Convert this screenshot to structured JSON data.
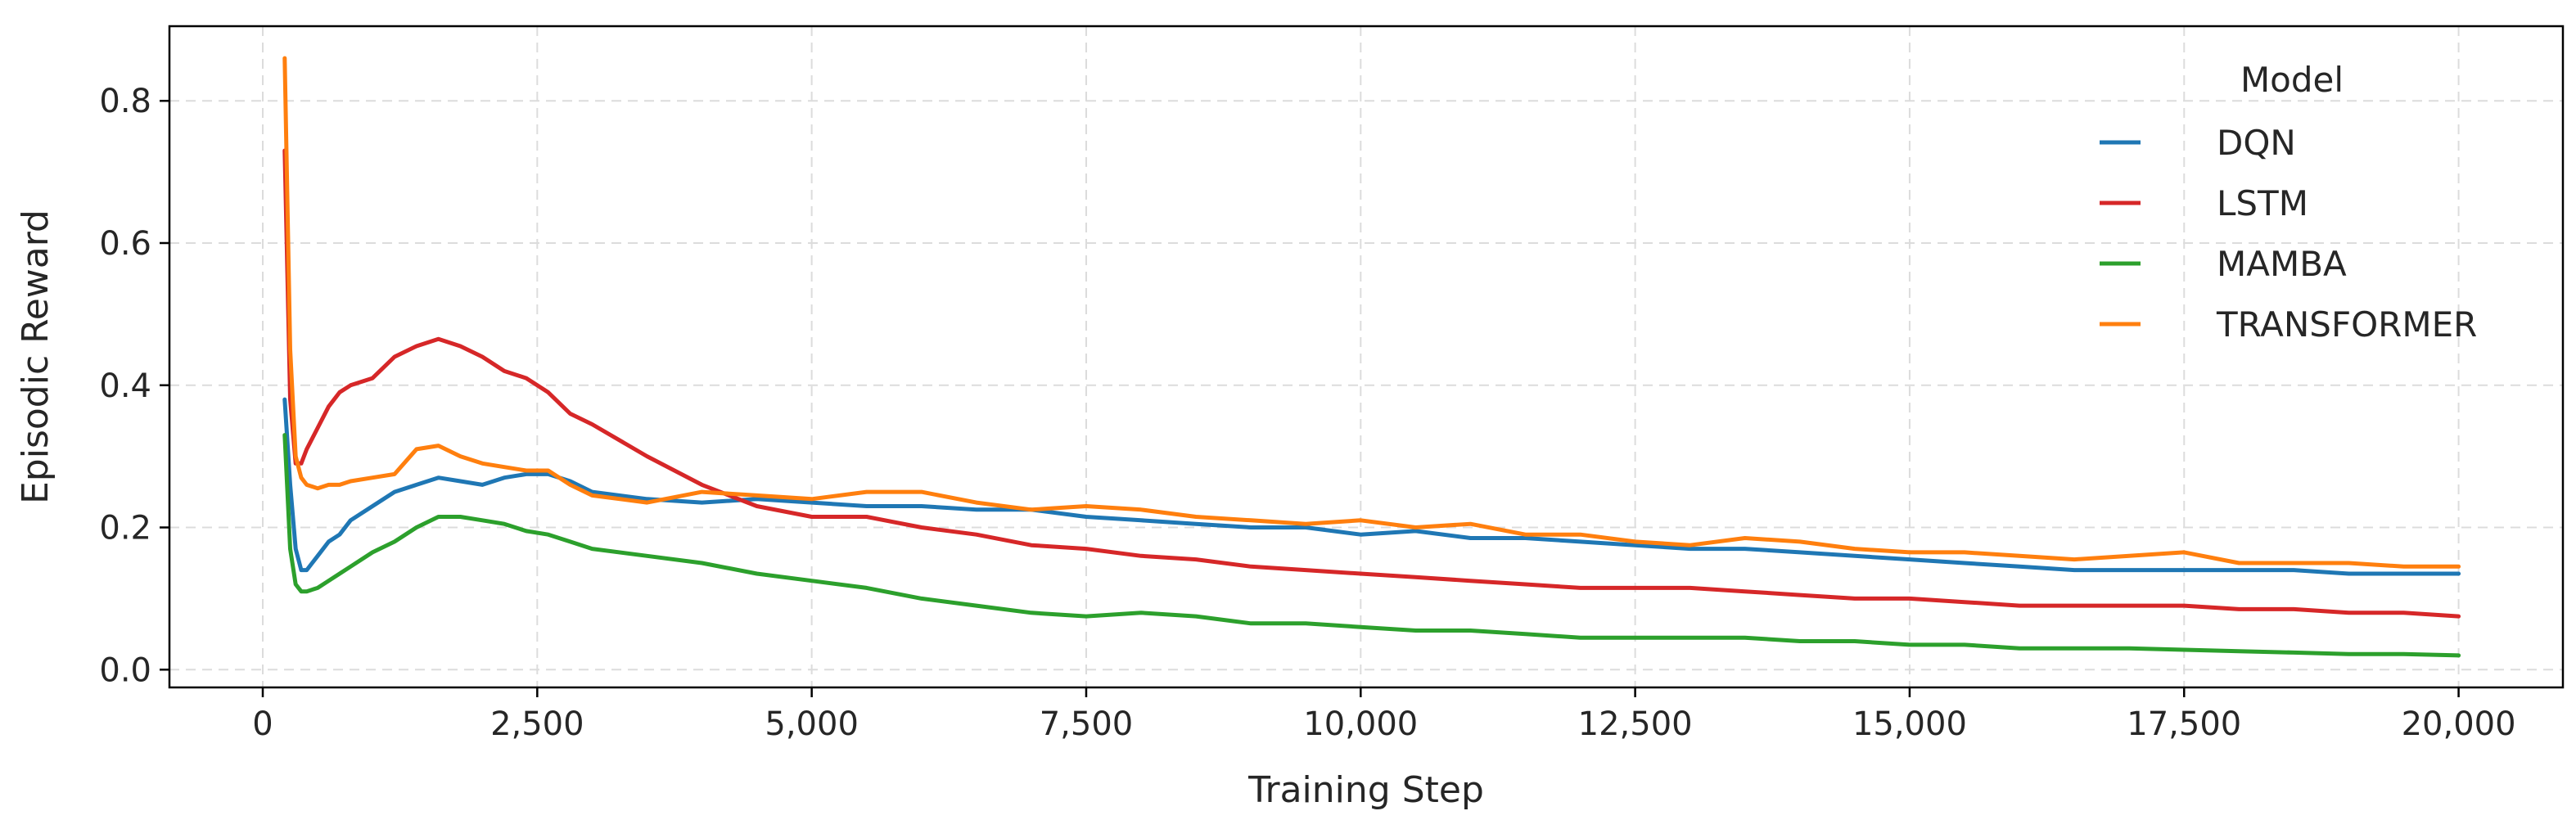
{
  "chart_data": {
    "type": "line",
    "title": "",
    "xlabel": "Training Step",
    "ylabel": "Episodic Reward",
    "xlim": [
      -850,
      20950
    ],
    "ylim": [
      -0.025,
      0.905
    ],
    "xticks": [
      0,
      2500,
      5000,
      7500,
      10000,
      12500,
      15000,
      17500,
      20000
    ],
    "xtick_labels": [
      "0",
      "2,500",
      "5,000",
      "7,500",
      "10,000",
      "12,500",
      "15,000",
      "17,500",
      "20,000"
    ],
    "yticks": [
      0.0,
      0.2,
      0.4,
      0.6,
      0.8
    ],
    "ytick_labels": [
      "0.0",
      "0.2",
      "0.4",
      "0.6",
      "0.8"
    ],
    "grid": true,
    "legend": {
      "title": "Model",
      "placement": "top-right"
    },
    "series": [
      {
        "name": "DQN",
        "color": "#1f77b4",
        "x": [
          200,
          250,
          300,
          350,
          400,
          500,
          600,
          700,
          800,
          1000,
          1200,
          1400,
          1600,
          1800,
          2000,
          2200,
          2400,
          2600,
          2800,
          3000,
          3500,
          4000,
          4500,
          5000,
          5500,
          6000,
          6500,
          7000,
          7500,
          8000,
          8500,
          9000,
          9500,
          10000,
          10500,
          11000,
          11500,
          12000,
          12500,
          13000,
          13500,
          14000,
          14500,
          15000,
          15500,
          16000,
          16500,
          17000,
          17500,
          18000,
          18500,
          19000,
          19500,
          20000
        ],
        "values": [
          0.38,
          0.26,
          0.17,
          0.14,
          0.14,
          0.16,
          0.18,
          0.19,
          0.21,
          0.23,
          0.25,
          0.26,
          0.27,
          0.265,
          0.26,
          0.27,
          0.275,
          0.275,
          0.265,
          0.25,
          0.24,
          0.235,
          0.24,
          0.235,
          0.23,
          0.23,
          0.225,
          0.225,
          0.215,
          0.21,
          0.205,
          0.2,
          0.2,
          0.19,
          0.195,
          0.185,
          0.185,
          0.18,
          0.175,
          0.17,
          0.17,
          0.165,
          0.16,
          0.155,
          0.15,
          0.145,
          0.14,
          0.14,
          0.14,
          0.14,
          0.14,
          0.135,
          0.135,
          0.135
        ]
      },
      {
        "name": "LSTM",
        "color": "#d62728",
        "x": [
          200,
          250,
          300,
          350,
          400,
          500,
          600,
          700,
          800,
          1000,
          1200,
          1400,
          1600,
          1800,
          2000,
          2200,
          2400,
          2600,
          2800,
          3000,
          3500,
          4000,
          4500,
          5000,
          5500,
          6000,
          6500,
          7000,
          7500,
          8000,
          8500,
          9000,
          9500,
          10000,
          10500,
          11000,
          11500,
          12000,
          12500,
          13000,
          13500,
          14000,
          14500,
          15000,
          15500,
          16000,
          16500,
          17000,
          17500,
          18000,
          18500,
          19000,
          19500,
          20000
        ],
        "values": [
          0.73,
          0.38,
          0.29,
          0.29,
          0.31,
          0.34,
          0.37,
          0.39,
          0.4,
          0.41,
          0.44,
          0.455,
          0.465,
          0.455,
          0.44,
          0.42,
          0.41,
          0.39,
          0.36,
          0.345,
          0.3,
          0.26,
          0.23,
          0.215,
          0.215,
          0.2,
          0.19,
          0.175,
          0.17,
          0.16,
          0.155,
          0.145,
          0.14,
          0.135,
          0.13,
          0.125,
          0.12,
          0.115,
          0.115,
          0.115,
          0.11,
          0.105,
          0.1,
          0.1,
          0.095,
          0.09,
          0.09,
          0.09,
          0.09,
          0.085,
          0.085,
          0.08,
          0.08,
          0.075
        ]
      },
      {
        "name": "MAMBA",
        "color": "#2ca02c",
        "x": [
          200,
          250,
          300,
          350,
          400,
          500,
          600,
          700,
          800,
          1000,
          1200,
          1400,
          1600,
          1800,
          2000,
          2200,
          2400,
          2600,
          2800,
          3000,
          3500,
          4000,
          4500,
          5000,
          5500,
          6000,
          6500,
          7000,
          7500,
          8000,
          8500,
          9000,
          9500,
          10000,
          10500,
          11000,
          11500,
          12000,
          12500,
          13000,
          13500,
          14000,
          14500,
          15000,
          15500,
          16000,
          16500,
          17000,
          17500,
          18000,
          18500,
          19000,
          19500,
          20000
        ],
        "values": [
          0.33,
          0.17,
          0.12,
          0.11,
          0.11,
          0.115,
          0.125,
          0.135,
          0.145,
          0.165,
          0.18,
          0.2,
          0.215,
          0.215,
          0.21,
          0.205,
          0.195,
          0.19,
          0.18,
          0.17,
          0.16,
          0.15,
          0.135,
          0.125,
          0.115,
          0.1,
          0.09,
          0.08,
          0.075,
          0.08,
          0.075,
          0.065,
          0.065,
          0.06,
          0.055,
          0.055,
          0.05,
          0.045,
          0.045,
          0.045,
          0.045,
          0.04,
          0.04,
          0.035,
          0.035,
          0.03,
          0.03,
          0.03,
          0.028,
          0.026,
          0.024,
          0.022,
          0.022,
          0.02
        ]
      },
      {
        "name": "TRANSFORMER",
        "color": "#ff7f0e",
        "x": [
          200,
          250,
          300,
          350,
          400,
          500,
          600,
          700,
          800,
          1000,
          1200,
          1400,
          1600,
          1800,
          2000,
          2200,
          2400,
          2600,
          2800,
          3000,
          3500,
          4000,
          4500,
          5000,
          5500,
          6000,
          6500,
          7000,
          7500,
          8000,
          8500,
          9000,
          9500,
          10000,
          10500,
          11000,
          11500,
          12000,
          12500,
          13000,
          13500,
          14000,
          14500,
          15000,
          15500,
          16000,
          16500,
          17000,
          17500,
          18000,
          18500,
          19000,
          19500,
          20000
        ],
        "values": [
          0.86,
          0.45,
          0.3,
          0.27,
          0.26,
          0.255,
          0.26,
          0.26,
          0.265,
          0.27,
          0.275,
          0.31,
          0.315,
          0.3,
          0.29,
          0.285,
          0.28,
          0.28,
          0.26,
          0.245,
          0.235,
          0.25,
          0.245,
          0.24,
          0.25,
          0.25,
          0.235,
          0.225,
          0.23,
          0.225,
          0.215,
          0.21,
          0.205,
          0.21,
          0.2,
          0.205,
          0.19,
          0.19,
          0.18,
          0.175,
          0.185,
          0.18,
          0.17,
          0.165,
          0.165,
          0.16,
          0.155,
          0.16,
          0.165,
          0.15,
          0.15,
          0.15,
          0.145,
          0.145
        ]
      }
    ]
  }
}
